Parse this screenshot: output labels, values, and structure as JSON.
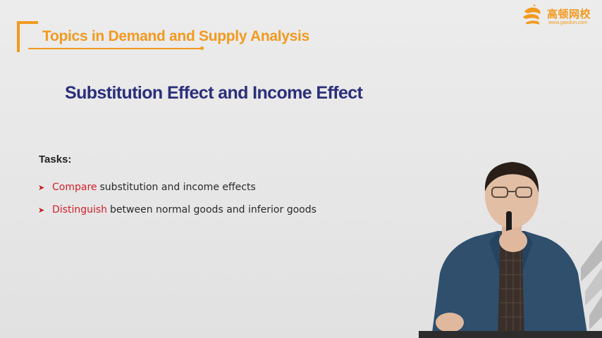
{
  "header": {
    "title": "Topics in Demand and Supply Analysis"
  },
  "logo": {
    "name": "高顿网校",
    "url": "www.gaodun.com",
    "icon": "gaodun-logo-icon"
  },
  "slide": {
    "title": "Substitution Effect and Income Effect"
  },
  "tasks": {
    "heading": "Tasks:",
    "items": [
      {
        "verb": "Compare",
        "text": "substitution and income effects"
      },
      {
        "verb": "Distinguish",
        "text": "between normal goods and inferior goods"
      }
    ]
  },
  "colors": {
    "accent": "#f29a1f",
    "title": "#2b2f7a",
    "verb": "#d1202a",
    "bullet": "#c7171e"
  }
}
